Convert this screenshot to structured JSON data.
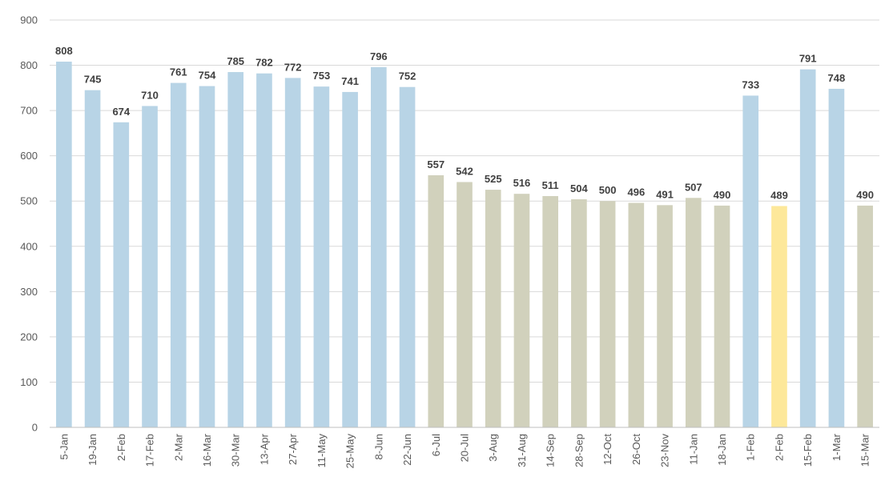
{
  "chart_data": {
    "type": "bar",
    "title": "",
    "xlabel": "",
    "ylabel": "",
    "ylim": [
      0,
      900
    ],
    "y_ticks": [
      0,
      100,
      200,
      300,
      400,
      500,
      600,
      700,
      800,
      900
    ],
    "grid": true,
    "legend": "none",
    "categories": [
      "5-Jan",
      "19-Jan",
      "2-Feb",
      "17-Feb",
      "2-Mar",
      "16-Mar",
      "30-Mar",
      "13-Apr",
      "27-Apr",
      "11-May",
      "25-May",
      "8-Jun",
      "22-Jun",
      "6-Jul",
      "20-Jul",
      "3-Aug",
      "31-Aug",
      "14-Sep",
      "28-Sep",
      "12-Oct",
      "26-Oct",
      "23-Nov",
      "11-Jan",
      "18-Jan",
      "1-Feb",
      "2-Feb",
      "15-Feb",
      "1-Mar",
      "15-Mar"
    ],
    "values": [
      808,
      745,
      674,
      710,
      761,
      754,
      785,
      782,
      772,
      753,
      741,
      796,
      752,
      557,
      542,
      525,
      516,
      511,
      504,
      500,
      496,
      491,
      507,
      490,
      733,
      489,
      791,
      748,
      490
    ],
    "bar_colors": [
      "#b8d4e6",
      "#b8d4e6",
      "#b8d4e6",
      "#b8d4e6",
      "#b8d4e6",
      "#b8d4e6",
      "#b8d4e6",
      "#b8d4e6",
      "#b8d4e6",
      "#b8d4e6",
      "#b8d4e6",
      "#b8d4e6",
      "#b8d4e6",
      "#d1d1bc",
      "#d1d1bc",
      "#d1d1bc",
      "#d1d1bc",
      "#d1d1bc",
      "#d1d1bc",
      "#d1d1bc",
      "#d1d1bc",
      "#d1d1bc",
      "#d1d1bc",
      "#d1d1bc",
      "#b8d4e6",
      "#fde89a",
      "#b8d4e6",
      "#b8d4e6",
      "#d1d1bc"
    ],
    "data_labels": true
  }
}
